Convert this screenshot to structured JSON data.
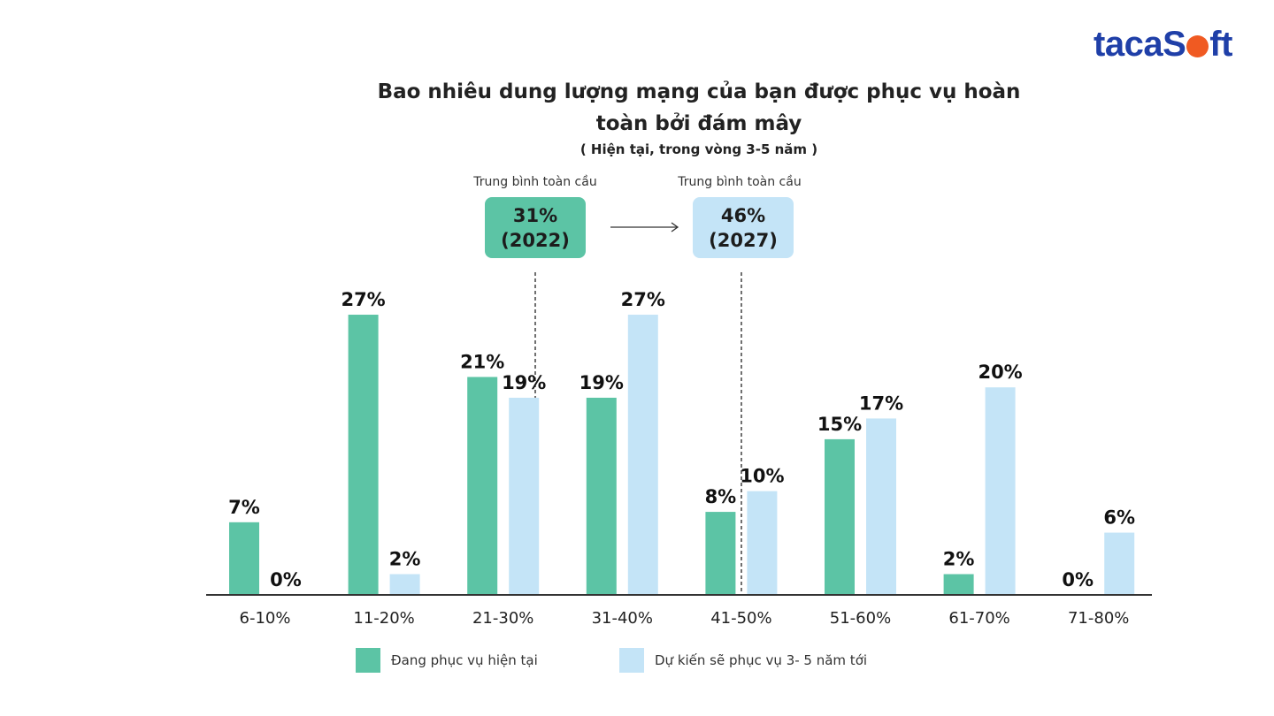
{
  "logo": {
    "text_a": "taca",
    "text_b": "S",
    "text_c": "ft"
  },
  "title_line1": "Bao nhiêu dung lượng mạng của bạn được phục vụ hoàn",
  "title_line2": "toàn bởi đám mây",
  "subtitle": "( Hiện tại, trong vòng 3-5 năm )",
  "averages": [
    {
      "label": "Trung bình toàn cầu",
      "value": "31%",
      "year": "(2022)"
    },
    {
      "label": "Trung bình toàn cầu",
      "value": "46%",
      "year": "(2027)"
    }
  ],
  "colors": {
    "current": "#5cc4a5",
    "future": "#c4e4f7",
    "logo_blue": "#1f3fa8",
    "logo_orange": "#f05a22"
  },
  "chart_data": {
    "type": "bar",
    "categories": [
      "6-10%",
      "11-20%",
      "21-30%",
      "31-40%",
      "41-50%",
      "51-60%",
      "61-70%",
      "71-80%"
    ],
    "series": [
      {
        "name": "Đang phục vụ hiện tại",
        "values": [
          7,
          27,
          21,
          19,
          8,
          15,
          2,
          0
        ]
      },
      {
        "name": "Dự kiến sẽ phục vụ 3- 5 năm tới",
        "values": [
          0,
          2,
          19,
          27,
          10,
          17,
          20,
          6
        ]
      }
    ],
    "data_labels": [
      [
        "7%",
        "27%",
        "21%",
        "19%",
        "8%",
        "15%",
        "2%",
        "0%"
      ],
      [
        "0%",
        "2%",
        "19%",
        "27%",
        "10%",
        "17%",
        "20%",
        "6%"
      ]
    ],
    "reference_lines": [
      31,
      46
    ],
    "ylim": [
      0,
      27
    ],
    "legend_position": "bottom",
    "grid": false
  }
}
